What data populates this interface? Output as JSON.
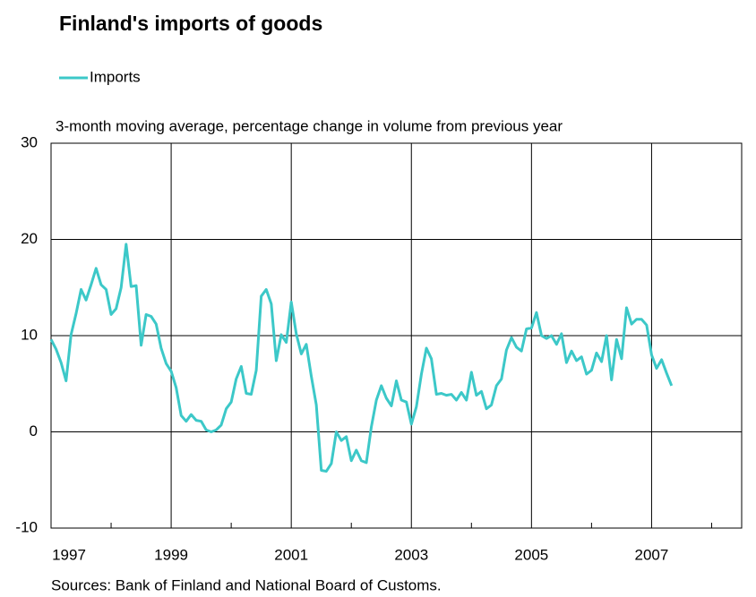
{
  "chart_data": {
    "type": "line",
    "title": "Finland's imports of goods",
    "subtitle": "3-month moving average, percentage change in volume from previous year",
    "source": "Sources: Bank of Finland and National Board of Customs.",
    "legend_position": "top-left",
    "grid": true,
    "xlim": [
      1997,
      2008.5
    ],
    "xticks": [
      1997,
      1999,
      2001,
      2003,
      2005,
      2007
    ],
    "xminorticks": [
      1998,
      2000,
      2002,
      2004,
      2006,
      2008
    ],
    "ylim": [
      -10,
      30
    ],
    "yticks": [
      -10,
      0,
      10,
      20,
      30
    ],
    "x": [
      1997,
      1997.083,
      1997.167,
      1997.25,
      1997.333,
      1997.417,
      1997.5,
      1997.583,
      1997.667,
      1997.75,
      1997.833,
      1997.917,
      1998,
      1998.083,
      1998.167,
      1998.25,
      1998.333,
      1998.417,
      1998.5,
      1998.583,
      1998.667,
      1998.75,
      1998.833,
      1998.917,
      1999,
      1999.083,
      1999.167,
      1999.25,
      1999.333,
      1999.417,
      1999.5,
      1999.583,
      1999.667,
      1999.75,
      1999.833,
      1999.917,
      2000,
      2000.083,
      2000.167,
      2000.25,
      2000.333,
      2000.417,
      2000.5,
      2000.583,
      2000.667,
      2000.75,
      2000.833,
      2000.917,
      2001,
      2001.083,
      2001.167,
      2001.25,
      2001.333,
      2001.417,
      2001.5,
      2001.583,
      2001.667,
      2001.75,
      2001.833,
      2001.917,
      2002,
      2002.083,
      2002.167,
      2002.25,
      2002.333,
      2002.417,
      2002.5,
      2002.583,
      2002.667,
      2002.75,
      2002.833,
      2002.917,
      2003,
      2003.083,
      2003.167,
      2003.25,
      2003.333,
      2003.417,
      2003.5,
      2003.583,
      2003.667,
      2003.75,
      2003.833,
      2003.917,
      2004,
      2004.083,
      2004.167,
      2004.25,
      2004.333,
      2004.417,
      2004.5,
      2004.583,
      2004.667,
      2004.75,
      2004.833,
      2004.917,
      2005,
      2005.083,
      2005.167,
      2005.25,
      2005.333,
      2005.417,
      2005.5,
      2005.583,
      2005.667,
      2005.75,
      2005.833,
      2005.917,
      2006,
      2006.083,
      2006.167,
      2006.25,
      2006.333,
      2006.417,
      2006.5,
      2006.583,
      2006.667,
      2006.75,
      2006.833,
      2006.917,
      2007,
      2007.083,
      2007.167,
      2007.25,
      2007.333
    ],
    "series": [
      {
        "name": "Imports",
        "color": "#3cc8c8",
        "values": [
          9.6,
          8.6,
          7.2,
          5.3,
          10.1,
          12.3,
          14.8,
          13.7,
          15.3,
          17.0,
          15.3,
          14.8,
          12.2,
          12.8,
          15.0,
          19.5,
          15.1,
          15.2,
          9.0,
          12.2,
          12.0,
          11.2,
          8.7,
          7.1,
          6.3,
          4.6,
          1.7,
          1.1,
          1.8,
          1.2,
          1.1,
          0.2,
          0.0,
          0.2,
          0.7,
          2.4,
          3.1,
          5.5,
          6.8,
          4.0,
          3.9,
          6.4,
          14.1,
          14.8,
          13.3,
          7.4,
          10.1,
          9.3,
          13.5,
          10.2,
          8.1,
          9.1,
          5.8,
          2.8,
          -4.0,
          -4.1,
          -3.3,
          0.0,
          -0.9,
          -0.5,
          -3.0,
          -1.9,
          -3.0,
          -3.2,
          0.5,
          3.3,
          4.8,
          3.5,
          2.7,
          5.3,
          3.3,
          3.1,
          0.8,
          2.6,
          6.0,
          8.7,
          7.6,
          3.9,
          4.0,
          3.8,
          3.9,
          3.3,
          4.1,
          3.3,
          6.2,
          3.8,
          4.2,
          2.4,
          2.8,
          4.8,
          5.5,
          8.5,
          9.8,
          8.8,
          8.4,
          10.7,
          10.8,
          12.4,
          10.0,
          9.7,
          10.0,
          9.1,
          10.2,
          7.2,
          8.4,
          7.4,
          7.8,
          6.0,
          6.4,
          8.2,
          7.3,
          10.0,
          5.4,
          9.6,
          7.6,
          12.9,
          11.2,
          11.7,
          11.7,
          11.1,
          8.0,
          6.6,
          7.5,
          6.1,
          4.8
        ]
      }
    ]
  }
}
